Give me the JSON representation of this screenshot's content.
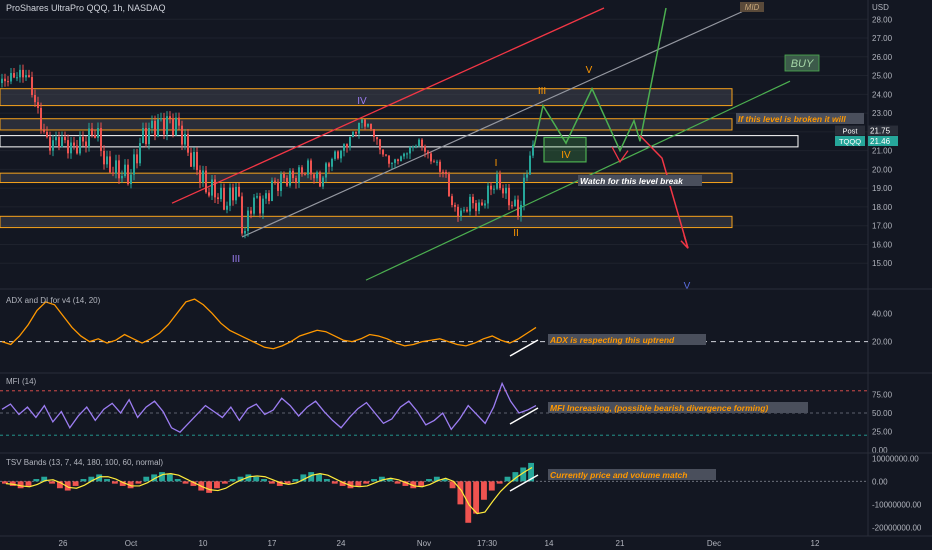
{
  "header": {
    "title": "ProShares UltraPro QQQ, 1h, NASDAQ",
    "currency": "USD"
  },
  "colors": {
    "background": "#131722",
    "up_candle": "#26a69a",
    "down_candle": "#ef5350",
    "zone_border": "#f7a21b",
    "annotation_bg": "#4a4f5c",
    "annotation_text_orange": "#ff9800",
    "red_channel": "#f23645",
    "gray_channel": "#9598a1",
    "green_channel": "#4caf50",
    "adx_line": "#ff9800",
    "mfi_line": "#9c7df2",
    "tsv_line": "#ffeb3b"
  },
  "chart_data": [
    {
      "type": "candlestick",
      "title": "ProShares UltraPro QQQ, 1h, NASDAQ",
      "ylim": [
        14.0,
        28.6
      ],
      "y_ticks": [
        "28.00",
        "27.00",
        "26.00",
        "25.00",
        "24.00",
        "23.00",
        "22.00",
        "21.00",
        "20.00",
        "19.00",
        "18.00",
        "17.00",
        "16.00",
        "15.00"
      ],
      "x_ticks": [
        "26",
        "Oct",
        "10",
        "17",
        "24",
        "Nov",
        "17:30",
        "14",
        "21",
        "Dec",
        "12"
      ],
      "price_path": [
        [
          0,
          24.6
        ],
        [
          14,
          25.0
        ],
        [
          26,
          25.1
        ],
        [
          32,
          24.2
        ],
        [
          40,
          22.6
        ],
        [
          48,
          21.3
        ],
        [
          60,
          21.6
        ],
        [
          72,
          21.1
        ],
        [
          84,
          21.5
        ],
        [
          96,
          22.1
        ],
        [
          106,
          20.2
        ],
        [
          118,
          19.9
        ],
        [
          130,
          19.6
        ],
        [
          142,
          21.7
        ],
        [
          156,
          22.4
        ],
        [
          170,
          22.5
        ],
        [
          180,
          22.2
        ],
        [
          188,
          20.9
        ],
        [
          196,
          20.2
        ],
        [
          206,
          19.0
        ],
        [
          216,
          18.8
        ],
        [
          226,
          18.1
        ],
        [
          236,
          19.1
        ],
        [
          244,
          16.4
        ],
        [
          252,
          18.4
        ],
        [
          262,
          18.1
        ],
        [
          272,
          19.1
        ],
        [
          284,
          19.5
        ],
        [
          296,
          19.6
        ],
        [
          308,
          20.1
        ],
        [
          320,
          19.3
        ],
        [
          330,
          20.5
        ],
        [
          342,
          21.0
        ],
        [
          352,
          21.8
        ],
        [
          362,
          22.6
        ],
        [
          372,
          22.1
        ],
        [
          380,
          21.1
        ],
        [
          390,
          20.3
        ],
        [
          400,
          20.6
        ],
        [
          410,
          21.1
        ],
        [
          420,
          21.5
        ],
        [
          428,
          20.7
        ],
        [
          438,
          20.2
        ],
        [
          446,
          19.6
        ],
        [
          452,
          18.0
        ],
        [
          462,
          17.6
        ],
        [
          470,
          18.3
        ],
        [
          480,
          17.9
        ],
        [
          490,
          19.0
        ],
        [
          498,
          19.4
        ],
        [
          506,
          18.6
        ],
        [
          514,
          18.0
        ],
        [
          520,
          17.8
        ],
        [
          528,
          20.5
        ],
        [
          536,
          21.2
        ]
      ],
      "key_levels": [
        {
          "label": "If this level is broken it will",
          "low": 23.4,
          "high": 24.3
        },
        {
          "label": "",
          "low": 22.1,
          "high": 22.7
        },
        {
          "label": "",
          "low": 21.2,
          "high": 21.8
        },
        {
          "label": "Watch for this level break",
          "low": 19.3,
          "high": 19.8
        },
        {
          "label": "",
          "low": 16.9,
          "high": 17.5
        }
      ],
      "price_labels": [
        {
          "name": "Post",
          "value": "21.75"
        },
        {
          "name": "TQQQ",
          "value": "21.46"
        }
      ],
      "wave_labels": [
        "III",
        "IV",
        "I",
        "II",
        "III",
        "IV",
        "V",
        "V"
      ],
      "buy_label": "BUY",
      "mid_label": "MID"
    },
    {
      "type": "line",
      "title": "ADX and DI for v4 (14, 20)",
      "ylim": [
        0,
        55
      ],
      "y_ticks": [
        "40.00",
        "20.00"
      ],
      "reference_line": 20,
      "annotation": "ADX  is respecting this uptrend",
      "values": [
        20,
        18,
        24,
        32,
        42,
        48,
        46,
        38,
        30,
        24,
        20,
        22,
        19,
        21,
        25,
        22,
        19,
        22,
        26,
        32,
        40,
        48,
        50,
        46,
        40,
        33,
        28,
        25,
        22,
        19,
        16,
        15,
        17,
        20,
        24,
        26,
        28,
        27,
        24,
        21,
        20,
        22,
        25,
        24,
        22,
        19,
        17,
        18,
        20,
        21,
        22,
        20,
        18,
        17,
        19,
        22,
        24,
        21,
        19,
        22,
        26,
        30
      ]
    },
    {
      "type": "line",
      "title": "MFI (14)",
      "ylim": [
        0,
        100
      ],
      "y_ticks": [
        "75.00",
        "50.00",
        "25.00",
        "0.00"
      ],
      "reference_lines": [
        80,
        50,
        20
      ],
      "annotation": "MFI Increasing, (possible bearish divergence forming)",
      "values": [
        55,
        62,
        48,
        58,
        44,
        60,
        38,
        52,
        30,
        46,
        58,
        40,
        55,
        63,
        50,
        68,
        44,
        58,
        66,
        52,
        30,
        24,
        36,
        48,
        60,
        52,
        44,
        58,
        40,
        56,
        62,
        48,
        54,
        70,
        60,
        46,
        58,
        66,
        52,
        40,
        30,
        44,
        56,
        64,
        50,
        36,
        42,
        58,
        66,
        52,
        34,
        40,
        50,
        28,
        42,
        60,
        48,
        36,
        58,
        90,
        66,
        50,
        54,
        60
      ]
    },
    {
      "type": "bar",
      "title": "TSV Bands (13, 7, 44, 180, 100, 60, normal)",
      "ylim": [
        -22000000,
        11000000
      ],
      "y_ticks": [
        "10000000.00",
        "0.00",
        "-10000000.00",
        "-20000000.00"
      ],
      "annotation": "Currently price and volume match",
      "values_millions": [
        -1,
        -2,
        -3,
        -2,
        1,
        2,
        -1,
        -3,
        -4,
        -2,
        1,
        2,
        3,
        1,
        -1,
        -2,
        -3,
        -1,
        2,
        3,
        4,
        3,
        1,
        -1,
        -2,
        -4,
        -5,
        -3,
        -1,
        1,
        2,
        3,
        2,
        1,
        -1,
        -2,
        -1,
        1,
        3,
        4,
        3,
        1,
        -1,
        -2,
        -3,
        -2,
        -1,
        1,
        2,
        1,
        -1,
        -2,
        -3,
        -2,
        1,
        2,
        1,
        -3,
        -10,
        -18,
        -14,
        -8,
        -4,
        -1,
        2,
        4,
        6,
        8
      ]
    }
  ]
}
